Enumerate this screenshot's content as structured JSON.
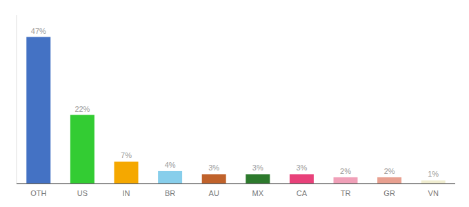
{
  "chart_data": {
    "type": "bar",
    "categories": [
      "OTH",
      "US",
      "IN",
      "BR",
      "AU",
      "MX",
      "CA",
      "TR",
      "GR",
      "VN"
    ],
    "values": [
      47,
      22,
      7,
      4,
      3,
      3,
      3,
      2,
      2,
      1
    ],
    "value_labels": [
      "47%",
      "22%",
      "7%",
      "4%",
      "3%",
      "3%",
      "3%",
      "2%",
      "2%",
      "1%"
    ],
    "colors": [
      "#4472c4",
      "#33cc33",
      "#f5a800",
      "#87ceeb",
      "#c0622b",
      "#2d7a2d",
      "#e8417a",
      "#f0a0b8",
      "#e8a090",
      "#f0edd0"
    ],
    "ylim": [
      0,
      54
    ],
    "data_labels": true,
    "grid": false,
    "tick_labels": "x"
  }
}
